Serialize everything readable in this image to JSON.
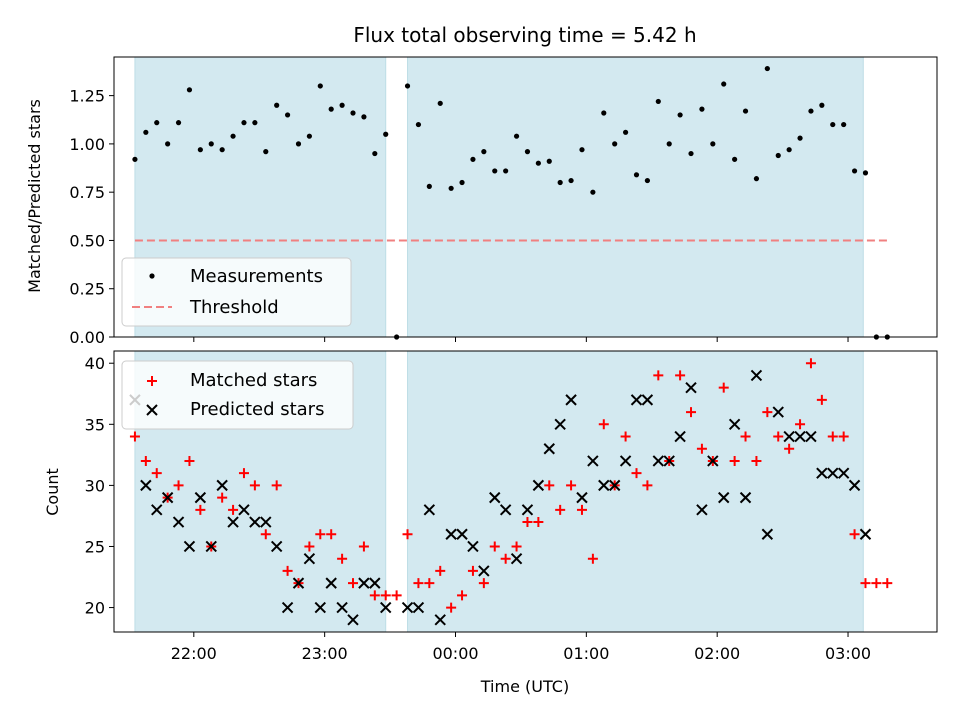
{
  "chart_data": [
    {
      "type": "scatter",
      "title": "Flux total observing time = 5.42 h",
      "ylabel": "Matched/Predicted stars",
      "xlabel": "",
      "x_unit": "time (UTC), hours since 00:00",
      "ylim": [
        0,
        1.45
      ],
      "yticks": [
        "0.00",
        "0.25",
        "0.50",
        "0.75",
        "1.00",
        "1.25"
      ],
      "shaded_ranges": [
        [
          "21:33",
          "23:28"
        ],
        [
          "23:38",
          "03:07"
        ]
      ],
      "legend": {
        "position": "lower-left",
        "entries": [
          "Measurements",
          "Threshold"
        ]
      },
      "series": [
        {
          "name": "Measurements",
          "x": [
            "21:33",
            "21:38",
            "21:43",
            "21:48",
            "21:53",
            "21:58",
            "22:03",
            "22:08",
            "22:13",
            "22:18",
            "22:23",
            "22:28",
            "22:33",
            "22:38",
            "22:43",
            "22:48",
            "22:53",
            "22:58",
            "23:03",
            "23:08",
            "23:13",
            "23:18",
            "23:23",
            "23:28",
            "23:33",
            "23:38",
            "23:43",
            "23:48",
            "23:53",
            "23:58",
            "00:03",
            "00:08",
            "00:13",
            "00:18",
            "00:23",
            "00:28",
            "00:33",
            "00:38",
            "00:43",
            "00:48",
            "00:53",
            "00:58",
            "01:03",
            "01:08",
            "01:13",
            "01:18",
            "01:23",
            "01:28",
            "01:33",
            "01:38",
            "01:43",
            "01:48",
            "01:53",
            "01:58",
            "02:03",
            "02:08",
            "02:13",
            "02:18",
            "02:23",
            "02:28",
            "02:33",
            "02:38",
            "02:43",
            "02:48",
            "02:53",
            "02:58",
            "03:03",
            "03:08",
            "03:13",
            "03:18"
          ],
          "y": [
            0.92,
            1.06,
            1.11,
            1.0,
            1.11,
            1.28,
            0.97,
            1.0,
            0.97,
            1.04,
            1.11,
            1.11,
            0.96,
            1.2,
            1.15,
            1.0,
            1.04,
            1.3,
            1.18,
            1.2,
            1.16,
            1.14,
            0.95,
            1.05,
            0.0,
            1.3,
            1.1,
            0.78,
            1.21,
            0.77,
            0.8,
            0.92,
            0.96,
            0.86,
            0.86,
            1.04,
            0.96,
            0.9,
            0.91,
            0.8,
            0.81,
            0.97,
            0.75,
            1.16,
            1.0,
            1.06,
            0.84,
            0.81,
            1.22,
            1.0,
            1.15,
            0.95,
            1.18,
            1.0,
            1.31,
            0.92,
            1.17,
            0.82,
            1.39,
            0.94,
            0.97,
            1.03,
            1.17,
            1.2,
            1.1,
            1.1,
            0.86,
            0.85,
            0.0,
            0.0
          ]
        },
        {
          "name": "Threshold",
          "x": [
            "21:33",
            "03:18"
          ],
          "y": [
            0.5,
            0.5
          ]
        }
      ]
    },
    {
      "type": "scatter",
      "title": "",
      "xlabel": "Time (UTC)",
      "ylabel": "Count",
      "ylim": [
        18,
        41
      ],
      "yticks": [
        "20",
        "25",
        "30",
        "35",
        "40"
      ],
      "xticks": [
        "22:00",
        "23:00",
        "00:00",
        "01:00",
        "02:00",
        "03:00"
      ],
      "legend": {
        "position": "upper-left",
        "entries": [
          "Matched stars",
          "Predicted stars"
        ]
      },
      "series": [
        {
          "name": "Matched stars",
          "x": [
            "21:33",
            "21:38",
            "21:43",
            "21:48",
            "21:53",
            "21:58",
            "22:03",
            "22:08",
            "22:13",
            "22:18",
            "22:23",
            "22:28",
            "22:33",
            "22:38",
            "22:43",
            "22:48",
            "22:53",
            "22:58",
            "23:03",
            "23:08",
            "23:13",
            "23:18",
            "23:23",
            "23:28",
            "23:33",
            "23:38",
            "23:43",
            "23:48",
            "23:53",
            "23:58",
            "00:03",
            "00:08",
            "00:13",
            "00:18",
            "00:23",
            "00:28",
            "00:33",
            "00:38",
            "00:43",
            "00:48",
            "00:53",
            "00:58",
            "01:03",
            "01:08",
            "01:13",
            "01:18",
            "01:23",
            "01:28",
            "01:33",
            "01:38",
            "01:43",
            "01:48",
            "01:53",
            "01:58",
            "02:03",
            "02:08",
            "02:13",
            "02:18",
            "02:23",
            "02:28",
            "02:33",
            "02:38",
            "02:43",
            "02:48",
            "02:53",
            "02:58",
            "03:03",
            "03:08",
            "03:13",
            "03:18"
          ],
          "y": [
            34,
            32,
            31,
            29,
            30,
            32,
            28,
            25,
            29,
            28,
            31,
            30,
            26,
            30,
            23,
            22,
            25,
            26,
            26,
            24,
            22,
            25,
            21,
            21,
            21,
            26,
            22,
            22,
            23,
            20,
            21,
            23,
            22,
            25,
            24,
            25,
            27,
            27,
            30,
            28,
            30,
            28,
            24,
            35,
            30,
            34,
            31,
            30,
            39,
            32,
            39,
            36,
            33,
            32,
            38,
            32,
            34,
            32,
            36,
            34,
            33,
            35,
            40,
            37,
            34,
            34,
            26,
            22,
            22,
            22
          ]
        },
        {
          "name": "Predicted stars",
          "x": [
            "21:33",
            "21:38",
            "21:43",
            "21:48",
            "21:53",
            "21:58",
            "22:03",
            "22:08",
            "22:13",
            "22:18",
            "22:23",
            "22:28",
            "22:33",
            "22:38",
            "22:43",
            "22:48",
            "22:53",
            "22:58",
            "23:03",
            "23:08",
            "23:13",
            "23:18",
            "23:23",
            "23:28",
            "23:38",
            "23:43",
            "23:48",
            "23:53",
            "23:58",
            "00:03",
            "00:08",
            "00:13",
            "00:18",
            "00:23",
            "00:28",
            "00:33",
            "00:38",
            "00:43",
            "00:48",
            "00:53",
            "00:58",
            "01:03",
            "01:08",
            "01:13",
            "01:18",
            "01:23",
            "01:28",
            "01:33",
            "01:38",
            "01:43",
            "01:48",
            "01:53",
            "01:58",
            "02:03",
            "02:08",
            "02:13",
            "02:18",
            "02:23",
            "02:28",
            "02:33",
            "02:38",
            "02:43",
            "02:48",
            "02:53",
            "02:58",
            "03:03",
            "03:08"
          ],
          "y": [
            37,
            30,
            28,
            29,
            27,
            25,
            29,
            25,
            30,
            27,
            28,
            27,
            27,
            25,
            20,
            22,
            24,
            20,
            22,
            20,
            19,
            22,
            22,
            20,
            20,
            20,
            28,
            19,
            26,
            26,
            25,
            23,
            29,
            28,
            24,
            28,
            30,
            33,
            35,
            37,
            29,
            32,
            30,
            30,
            32,
            37,
            37,
            32,
            32,
            34,
            38,
            28,
            32,
            29,
            35,
            29,
            39,
            26,
            36,
            34,
            34,
            34,
            31,
            31,
            31,
            30,
            26
          ]
        }
      ]
    }
  ],
  "colors": {
    "shade": "#d3e9f0",
    "shade_edge": "#bedde6",
    "measurements": "#000000",
    "threshold": "#f08080",
    "matched": "#ff0000",
    "predicted": "#000000"
  }
}
